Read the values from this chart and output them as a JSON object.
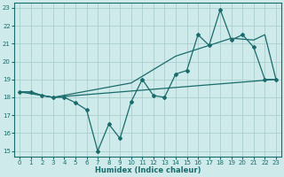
{
  "xlabel": "Humidex (Indice chaleur)",
  "xlim": [
    -0.5,
    23.5
  ],
  "ylim": [
    14.7,
    23.3
  ],
  "yticks": [
    15,
    16,
    17,
    18,
    19,
    20,
    21,
    22,
    23
  ],
  "xticks": [
    0,
    1,
    2,
    3,
    4,
    5,
    6,
    7,
    8,
    9,
    10,
    11,
    12,
    13,
    14,
    15,
    16,
    17,
    18,
    19,
    20,
    21,
    22,
    23
  ],
  "bg_color": "#ceeaea",
  "grid_color": "#aacfcf",
  "line_color": "#1a6b6b",
  "line1_x": [
    0,
    1,
    2,
    3,
    4,
    5,
    6,
    7,
    8,
    9,
    10,
    11,
    12,
    13,
    14,
    15,
    16,
    17,
    18,
    19,
    20,
    21,
    22,
    23
  ],
  "line1_y": [
    18.3,
    18.3,
    18.1,
    18.0,
    18.0,
    17.7,
    17.3,
    15.0,
    16.5,
    15.7,
    17.75,
    19.0,
    18.1,
    18.0,
    19.3,
    19.5,
    21.5,
    20.9,
    22.9,
    21.2,
    21.5,
    20.8,
    19.0,
    19.0
  ],
  "line2_x": [
    0,
    3,
    10,
    14,
    19,
    21,
    22,
    23
  ],
  "line2_y": [
    18.3,
    18.0,
    18.8,
    20.3,
    21.3,
    21.2,
    21.5,
    19.0
  ],
  "line3_x": [
    0,
    1,
    2,
    3,
    23
  ],
  "line3_y": [
    18.3,
    18.3,
    18.1,
    18.0,
    19.0
  ]
}
